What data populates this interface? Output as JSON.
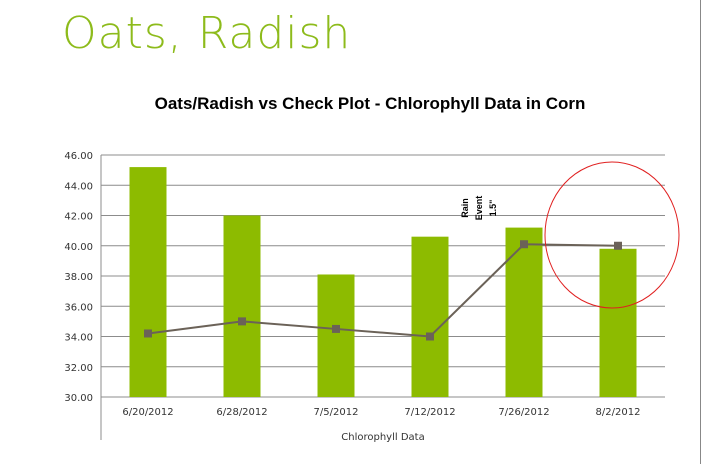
{
  "slide_title": "Oats, Radish",
  "chart_data": {
    "type": "bar+line",
    "title": "Oats/Radish vs Check Plot - Chlorophyll Data in Corn",
    "xlabel": "Chlorophyll Data",
    "ylabel": "",
    "ylim": [
      30,
      46
    ],
    "yticks": [
      "30.00",
      "32.00",
      "34.00",
      "36.00",
      "38.00",
      "40.00",
      "42.00",
      "44.00",
      "46.00"
    ],
    "categories": [
      "6/20/2012",
      "6/28/2012",
      "7/5/2012",
      "7/12/2012",
      "7/26/2012",
      "8/2/2012"
    ],
    "series": [
      {
        "type": "bar",
        "color": "#8dbb00",
        "values": [
          45.2,
          42.0,
          38.1,
          40.6,
          41.2,
          39.8
        ]
      },
      {
        "type": "line",
        "color": "#6b6258",
        "marker": "square",
        "values": [
          34.2,
          35.0,
          34.5,
          34.0,
          40.1,
          40.0
        ]
      }
    ],
    "grid": true,
    "annotations": [
      {
        "text_lines": [
          "Rain",
          "Event",
          "1.5\""
        ],
        "near_category": "7/26/2012"
      }
    ],
    "highlight": {
      "shape": "circle",
      "color": "#e02020",
      "category": "8/2/2012"
    }
  }
}
